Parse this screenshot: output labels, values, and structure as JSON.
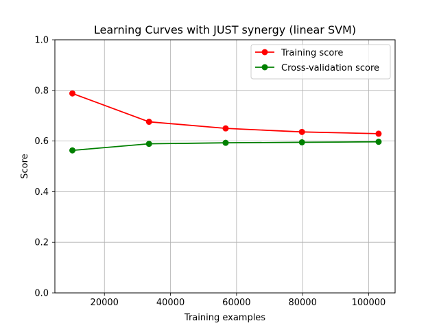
{
  "chart_data": {
    "type": "line",
    "title": "Learning Curves with JUST synergy (linear SVM)",
    "xlabel": "Training examples",
    "ylabel": "Score",
    "xlim": [
      5000,
      108000
    ],
    "ylim": [
      0.0,
      1.0
    ],
    "xticks": [
      20000,
      40000,
      60000,
      80000,
      100000
    ],
    "yticks": [
      0.0,
      0.2,
      0.4,
      0.6,
      0.8,
      1.0
    ],
    "xtick_labels": [
      "20000",
      "40000",
      "60000",
      "80000",
      "100000"
    ],
    "ytick_labels": [
      "0.0",
      "0.2",
      "0.4",
      "0.6",
      "0.8",
      "1.0"
    ],
    "grid": true,
    "legend_position": "top-right",
    "x": [
      10300,
      33500,
      56700,
      79800,
      103000
    ],
    "series": [
      {
        "name": "Training score",
        "color": "#ff0000",
        "values": [
          0.788,
          0.676,
          0.65,
          0.636,
          0.629
        ]
      },
      {
        "name": "Cross-validation score",
        "color": "#008000",
        "values": [
          0.563,
          0.589,
          0.593,
          0.595,
          0.597
        ]
      }
    ]
  }
}
